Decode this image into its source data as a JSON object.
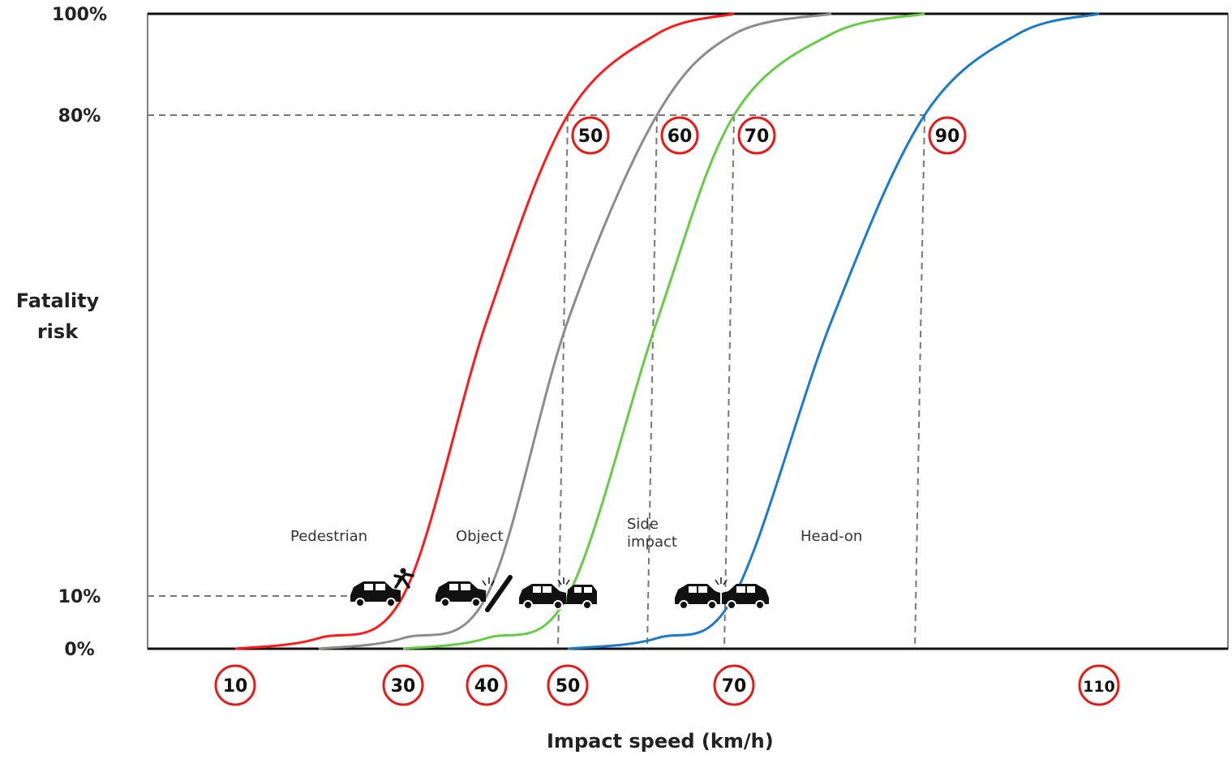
{
  "chart_data": {
    "type": "line",
    "title": "",
    "xlabel": "Impact speed (km/h)",
    "ylabel": "Fatality risk",
    "ylim": [
      0,
      100
    ],
    "y_ticks": [
      "0%",
      "10%",
      "80%",
      "100%"
    ],
    "x_ticks": [
      "10",
      "30",
      "40",
      "50",
      "70",
      "110"
    ],
    "grid": false,
    "reference_lines": [
      {
        "y": 80,
        "speed": "50"
      },
      {
        "y": 80,
        "speed": "60"
      },
      {
        "y": 80,
        "speed": "70"
      },
      {
        "y": 80,
        "speed": "90"
      },
      {
        "y": 10,
        "speed": "30"
      }
    ],
    "series": [
      {
        "name": "Pedestrian",
        "color": "#ff1a1a",
        "x": [
          10,
          20,
          30,
          40,
          50,
          60,
          70
        ],
        "y": [
          0,
          2,
          10,
          50,
          80,
          96,
          100
        ]
      },
      {
        "name": "Object",
        "color": "#8c8c8c",
        "x": [
          20,
          30,
          40,
          50,
          60,
          70,
          80
        ],
        "y": [
          0,
          2,
          10,
          50,
          80,
          96,
          100
        ]
      },
      {
        "name": "Side impact",
        "color": "#66cc44",
        "x": [
          30,
          40,
          50,
          60,
          70,
          80,
          90
        ],
        "y": [
          0,
          2,
          10,
          50,
          80,
          96,
          100
        ]
      },
      {
        "name": "Head-on",
        "color": "#1a7acc",
        "x": [
          50,
          60,
          70,
          80,
          90,
          100,
          110
        ],
        "y": [
          0,
          2,
          10,
          50,
          80,
          96,
          100
        ]
      }
    ]
  },
  "labels": {
    "y_axis_line1": "Fatality",
    "y_axis_line2": "risk",
    "x_axis": "Impact speed (km/h)",
    "pedestrian": "Pedestrian",
    "object": "Object",
    "side_line1": "Side",
    "side_line2": "impact",
    "head_on": "Head-on"
  },
  "icons": [
    "car-pedestrian-icon",
    "car-object-icon",
    "car-side-impact-icon",
    "car-head-on-icon"
  ]
}
